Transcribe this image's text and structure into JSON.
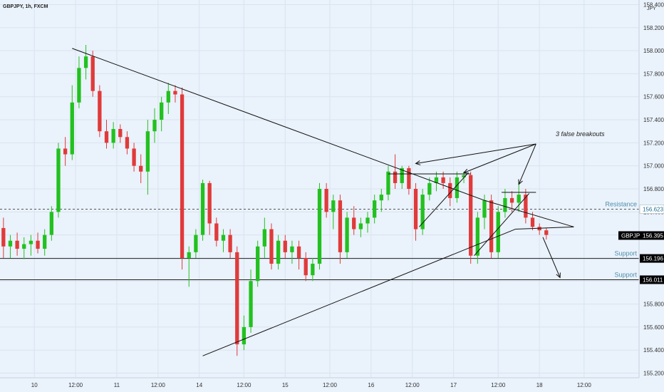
{
  "title": "GBPJPY, 1h, FXCM",
  "currency": "JPY",
  "chart_data": {
    "type": "candlestick",
    "ylim": [
      155.16,
      158.44
    ],
    "xlim": [
      0,
      93
    ],
    "y_ticks": [
      155.2,
      155.4,
      155.6,
      155.8,
      156.0,
      156.2,
      156.4,
      156.6,
      156.8,
      157.0,
      157.2,
      157.4,
      157.6,
      157.8,
      158.0,
      158.2,
      158.4
    ],
    "x_ticks": [
      {
        "label": "10",
        "x": 5
      },
      {
        "label": "12:00",
        "x": 11
      },
      {
        "label": "11",
        "x": 17
      },
      {
        "label": "12:00",
        "x": 23
      },
      {
        "label": "14",
        "x": 29
      },
      {
        "label": "12:00",
        "x": 35.5
      },
      {
        "label": "15",
        "x": 41.5
      },
      {
        "label": "12:00",
        "x": 48
      },
      {
        "label": "16",
        "x": 54
      },
      {
        "label": "12:00",
        "x": 60
      },
      {
        "label": "17",
        "x": 66
      },
      {
        "label": "12:00",
        "x": 72.5
      },
      {
        "label": "18",
        "x": 78.5
      },
      {
        "label": "12:00",
        "x": 85
      }
    ],
    "candles": [
      {
        "o": 156.46,
        "h": 156.55,
        "l": 156.2,
        "c": 156.3
      },
      {
        "o": 156.3,
        "h": 156.4,
        "l": 156.2,
        "c": 156.35
      },
      {
        "o": 156.35,
        "h": 156.42,
        "l": 156.22,
        "c": 156.28
      },
      {
        "o": 156.28,
        "h": 156.38,
        "l": 156.19,
        "c": 156.32
      },
      {
        "o": 156.32,
        "h": 156.4,
        "l": 156.22,
        "c": 156.35
      },
      {
        "o": 156.35,
        "h": 156.42,
        "l": 156.24,
        "c": 156.28
      },
      {
        "o": 156.28,
        "h": 156.45,
        "l": 156.22,
        "c": 156.4
      },
      {
        "o": 156.4,
        "h": 156.65,
        "l": 156.35,
        "c": 156.6
      },
      {
        "o": 156.6,
        "h": 157.2,
        "l": 156.55,
        "c": 157.15
      },
      {
        "o": 157.15,
        "h": 157.25,
        "l": 157.0,
        "c": 157.1
      },
      {
        "o": 157.1,
        "h": 157.7,
        "l": 157.05,
        "c": 157.55
      },
      {
        "o": 157.55,
        "h": 157.95,
        "l": 157.5,
        "c": 157.85
      },
      {
        "o": 157.85,
        "h": 158.05,
        "l": 157.75,
        "c": 157.95
      },
      {
        "o": 157.95,
        "h": 158.0,
        "l": 157.6,
        "c": 157.65
      },
      {
        "o": 157.65,
        "h": 157.7,
        "l": 157.25,
        "c": 157.3
      },
      {
        "o": 157.3,
        "h": 157.4,
        "l": 157.15,
        "c": 157.2
      },
      {
        "o": 157.2,
        "h": 157.38,
        "l": 157.15,
        "c": 157.32
      },
      {
        "o": 157.32,
        "h": 157.36,
        "l": 157.2,
        "c": 157.25
      },
      {
        "o": 157.25,
        "h": 157.3,
        "l": 157.1,
        "c": 157.15
      },
      {
        "o": 157.15,
        "h": 157.2,
        "l": 156.95,
        "c": 157.0
      },
      {
        "o": 157.0,
        "h": 157.1,
        "l": 156.85,
        "c": 156.95
      },
      {
        "o": 156.95,
        "h": 157.4,
        "l": 156.75,
        "c": 157.3
      },
      {
        "o": 157.3,
        "h": 157.5,
        "l": 157.2,
        "c": 157.4
      },
      {
        "o": 157.4,
        "h": 157.6,
        "l": 157.3,
        "c": 157.55
      },
      {
        "o": 157.55,
        "h": 157.72,
        "l": 157.45,
        "c": 157.65
      },
      {
        "o": 157.65,
        "h": 157.7,
        "l": 157.55,
        "c": 157.62
      },
      {
        "o": 157.62,
        "h": 157.68,
        "l": 156.1,
        "c": 156.2
      },
      {
        "o": 156.2,
        "h": 156.3,
        "l": 155.95,
        "c": 156.25
      },
      {
        "o": 156.25,
        "h": 156.45,
        "l": 156.2,
        "c": 156.4
      },
      {
        "o": 156.4,
        "h": 156.88,
        "l": 156.35,
        "c": 156.85
      },
      {
        "o": 156.85,
        "h": 156.87,
        "l": 156.4,
        "c": 156.5
      },
      {
        "o": 156.5,
        "h": 156.55,
        "l": 156.3,
        "c": 156.35
      },
      {
        "o": 156.35,
        "h": 156.45,
        "l": 156.25,
        "c": 156.4
      },
      {
        "o": 156.4,
        "h": 156.45,
        "l": 156.2,
        "c": 156.25
      },
      {
        "o": 156.25,
        "h": 156.3,
        "l": 155.35,
        "c": 155.45
      },
      {
        "o": 155.45,
        "h": 155.7,
        "l": 155.4,
        "c": 155.6
      },
      {
        "o": 155.6,
        "h": 156.1,
        "l": 155.55,
        "c": 156.0
      },
      {
        "o": 156.0,
        "h": 156.35,
        "l": 155.95,
        "c": 156.3
      },
      {
        "o": 156.3,
        "h": 156.55,
        "l": 156.2,
        "c": 156.45
      },
      {
        "o": 156.45,
        "h": 156.5,
        "l": 156.1,
        "c": 156.15
      },
      {
        "o": 156.15,
        "h": 156.4,
        "l": 156.1,
        "c": 156.35
      },
      {
        "o": 156.35,
        "h": 156.4,
        "l": 156.2,
        "c": 156.25
      },
      {
        "o": 156.25,
        "h": 156.35,
        "l": 156.15,
        "c": 156.3
      },
      {
        "o": 156.3,
        "h": 156.35,
        "l": 156.1,
        "c": 156.2
      },
      {
        "o": 156.2,
        "h": 156.25,
        "l": 156.0,
        "c": 156.05
      },
      {
        "o": 156.05,
        "h": 156.2,
        "l": 156.0,
        "c": 156.15
      },
      {
        "o": 156.15,
        "h": 156.85,
        "l": 156.1,
        "c": 156.8
      },
      {
        "o": 156.8,
        "h": 156.85,
        "l": 156.55,
        "c": 156.6
      },
      {
        "o": 156.6,
        "h": 156.75,
        "l": 156.45,
        "c": 156.7
      },
      {
        "o": 156.7,
        "h": 156.75,
        "l": 156.15,
        "c": 156.25
      },
      {
        "o": 156.25,
        "h": 156.6,
        "l": 156.2,
        "c": 156.55
      },
      {
        "o": 156.55,
        "h": 156.65,
        "l": 156.4,
        "c": 156.45
      },
      {
        "o": 156.45,
        "h": 156.55,
        "l": 156.38,
        "c": 156.5
      },
      {
        "o": 156.5,
        "h": 156.6,
        "l": 156.42,
        "c": 156.55
      },
      {
        "o": 156.55,
        "h": 156.75,
        "l": 156.5,
        "c": 156.7
      },
      {
        "o": 156.7,
        "h": 156.8,
        "l": 156.6,
        "c": 156.75
      },
      {
        "o": 156.75,
        "h": 157.0,
        "l": 156.7,
        "c": 156.95
      },
      {
        "o": 156.95,
        "h": 157.1,
        "l": 156.8,
        "c": 156.85
      },
      {
        "o": 156.85,
        "h": 157.0,
        "l": 156.8,
        "c": 156.98
      },
      {
        "o": 156.98,
        "h": 157.0,
        "l": 156.75,
        "c": 156.8
      },
      {
        "o": 156.8,
        "h": 156.85,
        "l": 156.35,
        "c": 156.45
      },
      {
        "o": 156.45,
        "h": 156.8,
        "l": 156.4,
        "c": 156.75
      },
      {
        "o": 156.75,
        "h": 156.9,
        "l": 156.7,
        "c": 156.85
      },
      {
        "o": 156.85,
        "h": 156.95,
        "l": 156.78,
        "c": 156.9
      },
      {
        "o": 156.9,
        "h": 156.95,
        "l": 156.8,
        "c": 156.85
      },
      {
        "o": 156.85,
        "h": 156.9,
        "l": 156.65,
        "c": 156.72
      },
      {
        "o": 156.72,
        "h": 156.95,
        "l": 156.68,
        "c": 156.9
      },
      {
        "o": 156.9,
        "h": 156.95,
        "l": 156.85,
        "c": 156.92
      },
      {
        "o": 156.92,
        "h": 156.95,
        "l": 156.15,
        "c": 156.22
      },
      {
        "o": 156.22,
        "h": 156.6,
        "l": 156.15,
        "c": 156.55
      },
      {
        "o": 156.55,
        "h": 156.75,
        "l": 156.45,
        "c": 156.7
      },
      {
        "o": 156.7,
        "h": 156.75,
        "l": 156.2,
        "c": 156.25
      },
      {
        "o": 156.25,
        "h": 156.65,
        "l": 156.2,
        "c": 156.6
      },
      {
        "o": 156.6,
        "h": 156.8,
        "l": 156.55,
        "c": 156.72
      },
      {
        "o": 156.72,
        "h": 156.78,
        "l": 156.6,
        "c": 156.68
      },
      {
        "o": 156.68,
        "h": 156.85,
        "l": 156.6,
        "c": 156.75
      },
      {
        "o": 156.75,
        "h": 156.8,
        "l": 156.5,
        "c": 156.55
      },
      {
        "o": 156.55,
        "h": 156.6,
        "l": 156.44,
        "c": 156.47
      },
      {
        "o": 156.47,
        "h": 156.5,
        "l": 156.4,
        "c": 156.44
      },
      {
        "o": 156.44,
        "h": 156.46,
        "l": 156.36,
        "c": 156.4
      }
    ],
    "lines": [
      {
        "x1": 10.5,
        "y1": 158.02,
        "x2": 70.5,
        "y2": 156.7
      },
      {
        "x1": 29.5,
        "y1": 155.35,
        "x2": 75,
        "y2": 156.45
      },
      {
        "x1": 70.5,
        "y1": 156.7,
        "x2": 83.5,
        "y2": 156.47
      },
      {
        "x1": 75,
        "y1": 156.45,
        "x2": 83.5,
        "y2": 156.47
      },
      {
        "x1": 56.5,
        "y1": 156.93,
        "x2": 68.5,
        "y2": 156.93
      },
      {
        "x1": 61,
        "y1": 156.47,
        "x2": 68,
        "y2": 156.93
      },
      {
        "x1": 69,
        "y1": 156.22,
        "x2": 77,
        "y2": 156.76
      },
      {
        "x1": 73,
        "y1": 156.77,
        "x2": 78,
        "y2": 156.77
      }
    ],
    "arrows": [
      {
        "x1": 78,
        "y1": 157.19,
        "x2": 60.5,
        "y2": 157.02
      },
      {
        "x1": 78,
        "y1": 157.19,
        "x2": 67.5,
        "y2": 156.94
      },
      {
        "x1": 78,
        "y1": 157.19,
        "x2": 75.5,
        "y2": 156.84
      },
      {
        "x1": 79,
        "y1": 156.38,
        "x2": 81.5,
        "y2": 156.03
      }
    ],
    "levels": [
      {
        "name": "Resistance",
        "value": 156.623,
        "label": "156.623",
        "style": "dashed",
        "tag_color": "#ffffff"
      },
      {
        "name": "Support",
        "value": 156.196,
        "label": "156.196",
        "style": "solid",
        "tag_color": "#000000"
      },
      {
        "name": "Support",
        "value": 156.011,
        "label": "156.011",
        "style": "solid",
        "tag_color": "#000000"
      }
    ],
    "current_price": {
      "symbol": "GBPJPY",
      "value": "156.395",
      "y": 156.395
    },
    "annotation_text": "3 false breakouts",
    "colors": {
      "up": "#22c11f",
      "down": "#e03a3a",
      "background": "#eaf2fb",
      "line": "#111111"
    }
  }
}
